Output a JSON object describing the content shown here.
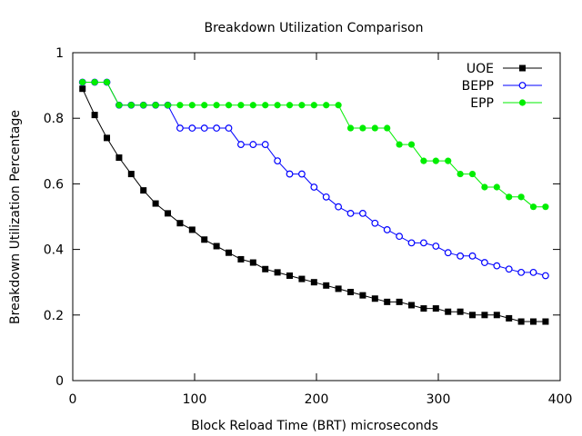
{
  "chart_data": {
    "type": "line",
    "title": "Breakdown Utilization Comparison",
    "xlabel": "Block Reload Time (BRT) microseconds",
    "ylabel": "Breakdown Utilization Percentage",
    "xlim": [
      0,
      400
    ],
    "ylim": [
      0,
      1
    ],
    "xticks": [
      0,
      100,
      200,
      300,
      400
    ],
    "yticks": [
      0,
      0.2,
      0.4,
      0.6,
      0.8,
      1
    ],
    "xtick_labels": [
      "0",
      "100",
      "200",
      "300",
      "400"
    ],
    "ytick_labels": [
      "0",
      "0.2",
      "0.4",
      "0.6",
      "0.8",
      "1"
    ],
    "grid": false,
    "legend_position": "top-right",
    "x": [
      8,
      18,
      28,
      38,
      48,
      58,
      68,
      78,
      88,
      98,
      108,
      118,
      128,
      138,
      148,
      158,
      168,
      178,
      188,
      198,
      208,
      218,
      228,
      238,
      248,
      258,
      268,
      278,
      288,
      298,
      308,
      318,
      328,
      338,
      348,
      358,
      368,
      378,
      388
    ],
    "series": [
      {
        "name": "UOE",
        "color": "#000000",
        "marker": "filled-square",
        "values": [
          0.89,
          0.81,
          0.74,
          0.68,
          0.63,
          0.58,
          0.54,
          0.51,
          0.48,
          0.46,
          0.43,
          0.41,
          0.39,
          0.37,
          0.36,
          0.34,
          0.33,
          0.32,
          0.31,
          0.3,
          0.29,
          0.28,
          0.27,
          0.26,
          0.25,
          0.24,
          0.24,
          0.23,
          0.22,
          0.22,
          0.21,
          0.21,
          0.2,
          0.2,
          0.2,
          0.19,
          0.18,
          0.18,
          0.18
        ]
      },
      {
        "name": "BEPP",
        "color": "#0000ff",
        "marker": "open-circle",
        "values": [
          0.91,
          0.91,
          0.91,
          0.84,
          0.84,
          0.84,
          0.84,
          0.84,
          0.77,
          0.77,
          0.77,
          0.77,
          0.77,
          0.72,
          0.72,
          0.72,
          0.67,
          0.63,
          0.63,
          0.59,
          0.56,
          0.53,
          0.51,
          0.51,
          0.48,
          0.46,
          0.44,
          0.42,
          0.42,
          0.41,
          0.39,
          0.38,
          0.38,
          0.36,
          0.35,
          0.34,
          0.33,
          0.33,
          0.32
        ]
      },
      {
        "name": "EPP",
        "color": "#00ee00",
        "marker": "filled-circle",
        "values": [
          0.91,
          0.91,
          0.91,
          0.84,
          0.84,
          0.84,
          0.84,
          0.84,
          0.84,
          0.84,
          0.84,
          0.84,
          0.84,
          0.84,
          0.84,
          0.84,
          0.84,
          0.84,
          0.84,
          0.84,
          0.84,
          0.84,
          0.77,
          0.77,
          0.77,
          0.77,
          0.72,
          0.72,
          0.67,
          0.67,
          0.67,
          0.63,
          0.63,
          0.59,
          0.59,
          0.56,
          0.56,
          0.53,
          0.53
        ]
      }
    ]
  }
}
